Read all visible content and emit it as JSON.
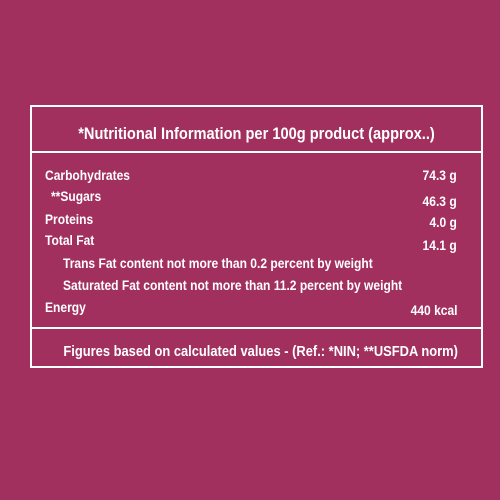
{
  "header": {
    "title": "*Nutritional Information per 100g product (approx..)"
  },
  "rows": [
    {
      "label": "Carbohydrates",
      "value": "74.3 g"
    },
    {
      "label": "**Sugars",
      "value": "46.3 g"
    },
    {
      "label": "Proteins",
      "value": "4.0 g"
    },
    {
      "label": "Total Fat",
      "value": "14.1 g"
    },
    {
      "label": "Trans Fat content not more than 0.2 percent by weight"
    },
    {
      "label": "Saturated Fat content not more than 11.2 percent by weight"
    },
    {
      "label": "Energy",
      "value": "440 kcal"
    }
  ],
  "footer": "Figures based on calculated values - (Ref.: *NIN; **USFDA norm)"
}
